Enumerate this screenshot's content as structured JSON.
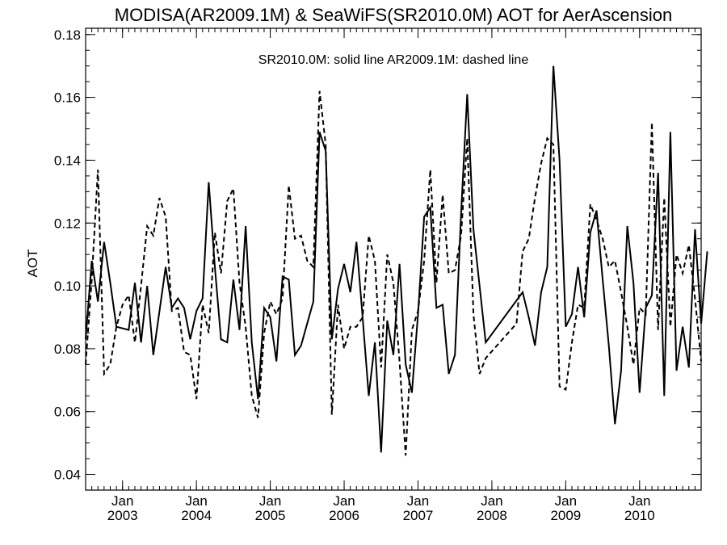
{
  "chart_data": {
    "type": "line",
    "title": "MODISA(AR2009.1M) & SeaWiFS(SR2010.0M)  AOT for AerAscension",
    "annotation": "SR2010.0M: solid line   AR2009.1M: dashed line",
    "xlabel": "",
    "ylabel": "AOT",
    "xlim": [
      "2002-07-01",
      "2010-11-01"
    ],
    "ylim": [
      0.035,
      0.182
    ],
    "y_ticks": [
      0.04,
      0.06,
      0.08,
      0.1,
      0.12,
      0.14,
      0.16,
      0.18
    ],
    "y_tick_labels": [
      "0.04",
      "0.06",
      "0.08",
      "0.10",
      "0.12",
      "0.14",
      "0.16",
      "0.18"
    ],
    "x_ticks": [
      {
        "month": "Jan",
        "year": "2003",
        "date": "2003-01"
      },
      {
        "month": "Jan",
        "year": "2004",
        "date": "2004-01"
      },
      {
        "month": "Jan",
        "year": "2005",
        "date": "2005-01"
      },
      {
        "month": "Jan",
        "year": "2006",
        "date": "2006-01"
      },
      {
        "month": "Jan",
        "year": "2007",
        "date": "2007-01"
      },
      {
        "month": "Jan",
        "year": "2008",
        "date": "2008-01"
      },
      {
        "month": "Jan",
        "year": "2009",
        "date": "2009-01"
      },
      {
        "month": "Jan",
        "year": "2010",
        "date": "2010-01"
      }
    ],
    "grid": false,
    "series": [
      {
        "name": "SR2010.0M",
        "style": "solid",
        "color": "#000000",
        "points": [
          [
            "2002-07",
            0.083
          ],
          [
            "2002-08",
            0.108
          ],
          [
            "2002-09",
            0.095
          ],
          [
            "2002-10",
            0.114
          ],
          [
            "2002-11",
            0.101
          ],
          [
            "2002-12",
            0.087
          ],
          [
            "2003-02",
            0.086
          ],
          [
            "2003-03",
            0.101
          ],
          [
            "2003-04",
            0.082
          ],
          [
            "2003-05",
            0.1
          ],
          [
            "2003-06",
            0.078
          ],
          [
            "2003-08",
            0.106
          ],
          [
            "2003-09",
            0.093
          ],
          [
            "2003-10",
            0.096
          ],
          [
            "2003-11",
            0.093
          ],
          [
            "2003-12",
            0.083
          ],
          [
            "2004-01",
            0.092
          ],
          [
            "2004-02",
            0.096
          ],
          [
            "2004-03",
            0.133
          ],
          [
            "2004-04",
            0.106
          ],
          [
            "2004-05",
            0.083
          ],
          [
            "2004-06",
            0.082
          ],
          [
            "2004-07",
            0.102
          ],
          [
            "2004-08",
            0.086
          ],
          [
            "2004-09",
            0.119
          ],
          [
            "2004-10",
            0.082
          ],
          [
            "2004-11",
            0.064
          ],
          [
            "2004-12",
            0.093
          ],
          [
            "2005-01",
            0.09
          ],
          [
            "2005-02",
            0.076
          ],
          [
            "2005-03",
            0.103
          ],
          [
            "2005-04",
            0.102
          ],
          [
            "2005-05",
            0.078
          ],
          [
            "2005-06",
            0.081
          ],
          [
            "2005-08",
            0.095
          ],
          [
            "2005-09",
            0.149
          ],
          [
            "2005-10",
            0.143
          ],
          [
            "2005-11",
            0.083
          ],
          [
            "2005-12",
            0.099
          ],
          [
            "2006-01",
            0.107
          ],
          [
            "2006-02",
            0.098
          ],
          [
            "2006-03",
            0.114
          ],
          [
            "2006-04",
            0.09
          ],
          [
            "2006-05",
            0.065
          ],
          [
            "2006-06",
            0.082
          ],
          [
            "2006-07",
            0.047
          ],
          [
            "2006-08",
            0.089
          ],
          [
            "2006-09",
            0.078
          ],
          [
            "2006-10",
            0.107
          ],
          [
            "2006-11",
            0.075
          ],
          [
            "2006-12",
            0.066
          ],
          [
            "2007-01",
            0.091
          ],
          [
            "2007-02",
            0.122
          ],
          [
            "2007-03",
            0.125
          ],
          [
            "2007-04",
            0.093
          ],
          [
            "2007-05",
            0.094
          ],
          [
            "2007-06",
            0.072
          ],
          [
            "2007-07",
            0.078
          ],
          [
            "2007-08",
            0.123
          ],
          [
            "2007-09",
            0.161
          ],
          [
            "2007-10",
            0.118
          ],
          [
            "2007-11",
            0.1
          ],
          [
            "2007-12",
            0.082
          ],
          [
            "2008-06",
            0.098
          ],
          [
            "2008-07",
            0.09
          ],
          [
            "2008-08",
            0.081
          ],
          [
            "2008-09",
            0.098
          ],
          [
            "2008-10",
            0.106
          ],
          [
            "2008-11",
            0.17
          ],
          [
            "2008-12",
            0.14
          ],
          [
            "2009-01",
            0.087
          ],
          [
            "2009-02",
            0.091
          ],
          [
            "2009-03",
            0.106
          ],
          [
            "2009-04",
            0.09
          ],
          [
            "2009-05",
            0.117
          ],
          [
            "2009-06",
            0.124
          ],
          [
            "2009-07",
            0.102
          ],
          [
            "2009-08",
            0.081
          ],
          [
            "2009-09",
            0.056
          ],
          [
            "2009-10",
            0.073
          ],
          [
            "2009-11",
            0.119
          ],
          [
            "2009-12",
            0.101
          ],
          [
            "2010-01",
            0.066
          ],
          [
            "2010-02",
            0.093
          ],
          [
            "2010-03",
            0.097
          ],
          [
            "2010-04",
            0.136
          ],
          [
            "2010-05",
            0.065
          ],
          [
            "2010-06",
            0.149
          ],
          [
            "2010-07",
            0.073
          ],
          [
            "2010-08",
            0.087
          ],
          [
            "2010-09",
            0.074
          ],
          [
            "2010-10",
            0.118
          ],
          [
            "2010-11",
            0.088
          ],
          [
            "2010-12",
            0.111
          ]
        ]
      },
      {
        "name": "AR2009.1M",
        "style": "dashed",
        "color": "#000000",
        "points": [
          [
            "2002-07",
            0.075
          ],
          [
            "2002-08",
            0.102
          ],
          [
            "2002-09",
            0.137
          ],
          [
            "2002-10",
            0.072
          ],
          [
            "2002-11",
            0.075
          ],
          [
            "2002-12",
            0.087
          ],
          [
            "2003-01",
            0.094
          ],
          [
            "2003-02",
            0.097
          ],
          [
            "2003-03",
            0.082
          ],
          [
            "2003-04",
            0.1
          ],
          [
            "2003-05",
            0.119
          ],
          [
            "2003-06",
            0.116
          ],
          [
            "2003-07",
            0.128
          ],
          [
            "2003-08",
            0.122
          ],
          [
            "2003-09",
            0.092
          ],
          [
            "2003-10",
            0.093
          ],
          [
            "2003-11",
            0.079
          ],
          [
            "2003-12",
            0.078
          ],
          [
            "2004-01",
            0.064
          ],
          [
            "2004-02",
            0.094
          ],
          [
            "2004-03",
            0.085
          ],
          [
            "2004-04",
            0.117
          ],
          [
            "2004-05",
            0.104
          ],
          [
            "2004-06",
            0.127
          ],
          [
            "2004-07",
            0.131
          ],
          [
            "2004-08",
            0.101
          ],
          [
            "2004-09",
            0.087
          ],
          [
            "2004-10",
            0.065
          ],
          [
            "2004-11",
            0.058
          ],
          [
            "2004-12",
            0.085
          ],
          [
            "2005-01",
            0.095
          ],
          [
            "2005-02",
            0.091
          ],
          [
            "2005-03",
            0.096
          ],
          [
            "2005-04",
            0.132
          ],
          [
            "2005-05",
            0.115
          ],
          [
            "2005-06",
            0.116
          ],
          [
            "2005-07",
            0.108
          ],
          [
            "2005-08",
            0.106
          ],
          [
            "2005-09",
            0.162
          ],
          [
            "2005-10",
            0.145
          ],
          [
            "2005-11",
            0.059
          ],
          [
            "2005-12",
            0.094
          ],
          [
            "2006-01",
            0.08
          ],
          [
            "2006-02",
            0.087
          ],
          [
            "2006-03",
            0.087
          ],
          [
            "2006-04",
            0.09
          ],
          [
            "2006-05",
            0.116
          ],
          [
            "2006-06",
            0.108
          ],
          [
            "2006-07",
            0.074
          ],
          [
            "2006-08",
            0.11
          ],
          [
            "2006-09",
            0.101
          ],
          [
            "2006-10",
            0.076
          ],
          [
            "2006-11",
            0.046
          ],
          [
            "2006-12",
            0.086
          ],
          [
            "2007-01",
            0.092
          ],
          [
            "2007-02",
            0.108
          ],
          [
            "2007-03",
            0.137
          ],
          [
            "2007-04",
            0.101
          ],
          [
            "2007-05",
            0.129
          ],
          [
            "2007-06",
            0.104
          ],
          [
            "2007-07",
            0.105
          ],
          [
            "2007-08",
            0.116
          ],
          [
            "2007-09",
            0.147
          ],
          [
            "2007-10",
            0.091
          ],
          [
            "2007-11",
            0.072
          ],
          [
            "2007-12",
            0.077
          ],
          [
            "2008-05",
            0.088
          ],
          [
            "2008-06",
            0.111
          ],
          [
            "2008-07",
            0.115
          ],
          [
            "2008-08",
            0.128
          ],
          [
            "2008-09",
            0.139
          ],
          [
            "2008-10",
            0.147
          ],
          [
            "2008-11",
            0.145
          ],
          [
            "2008-12",
            0.068
          ],
          [
            "2009-01",
            0.067
          ],
          [
            "2009-02",
            0.082
          ],
          [
            "2009-03",
            0.094
          ],
          [
            "2009-04",
            0.093
          ],
          [
            "2009-05",
            0.126
          ],
          [
            "2009-06",
            0.121
          ],
          [
            "2009-07",
            0.115
          ],
          [
            "2009-08",
            0.106
          ],
          [
            "2009-09",
            0.108
          ],
          [
            "2009-10",
            0.098
          ],
          [
            "2009-11",
            0.087
          ],
          [
            "2009-12",
            0.075
          ],
          [
            "2010-01",
            0.093
          ],
          [
            "2010-02",
            0.091
          ],
          [
            "2010-03",
            0.152
          ],
          [
            "2010-04",
            0.086
          ],
          [
            "2010-05",
            0.128
          ],
          [
            "2010-06",
            0.087
          ],
          [
            "2010-07",
            0.11
          ],
          [
            "2010-08",
            0.104
          ],
          [
            "2010-09",
            0.113
          ],
          [
            "2010-10",
            0.096
          ],
          [
            "2010-11",
            0.076
          ]
        ]
      }
    ]
  }
}
